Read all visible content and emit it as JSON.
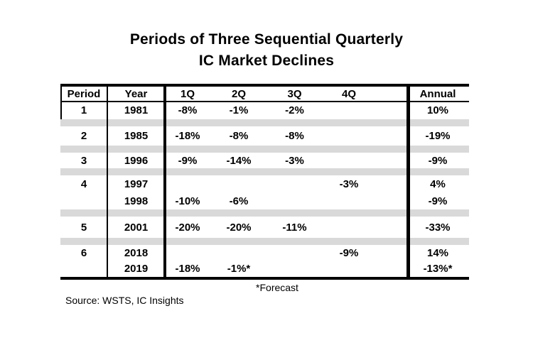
{
  "title": {
    "line1": "Periods of Three Sequential Quarterly",
    "line2": "IC Market Declines"
  },
  "chart_data": {
    "type": "table",
    "title": "Periods of Three Sequential Quarterly IC Market Declines",
    "columns": [
      "Period",
      "Year",
      "1Q",
      "2Q",
      "3Q",
      "4Q",
      "Annual"
    ],
    "rows": [
      [
        "1",
        "1981",
        "-8%",
        "-1%",
        "-2%",
        "",
        "10%"
      ],
      [
        "2",
        "1985",
        "-18%",
        "-8%",
        "-8%",
        "",
        "-19%"
      ],
      [
        "3",
        "1996",
        "-9%",
        "-14%",
        "-3%",
        "",
        "-9%"
      ],
      [
        "4",
        "1997",
        "",
        "",
        "",
        "-3%",
        "4%"
      ],
      [
        "",
        "1998",
        "-10%",
        "-6%",
        "",
        "",
        "-9%"
      ],
      [
        "5",
        "2001",
        "-20%",
        "-20%",
        "-11%",
        "",
        "-33%"
      ],
      [
        "6",
        "2018",
        "",
        "",
        "",
        "-9%",
        "14%"
      ],
      [
        "",
        "2019",
        "-18%",
        "-1%*",
        "",
        "",
        "-13%*"
      ]
    ],
    "footnote": "*Forecast",
    "source": "Source: WSTS, IC Insights"
  },
  "colors": {
    "spacer_band": "#d9d9d9",
    "line": "#000000",
    "background": "#ffffff"
  }
}
